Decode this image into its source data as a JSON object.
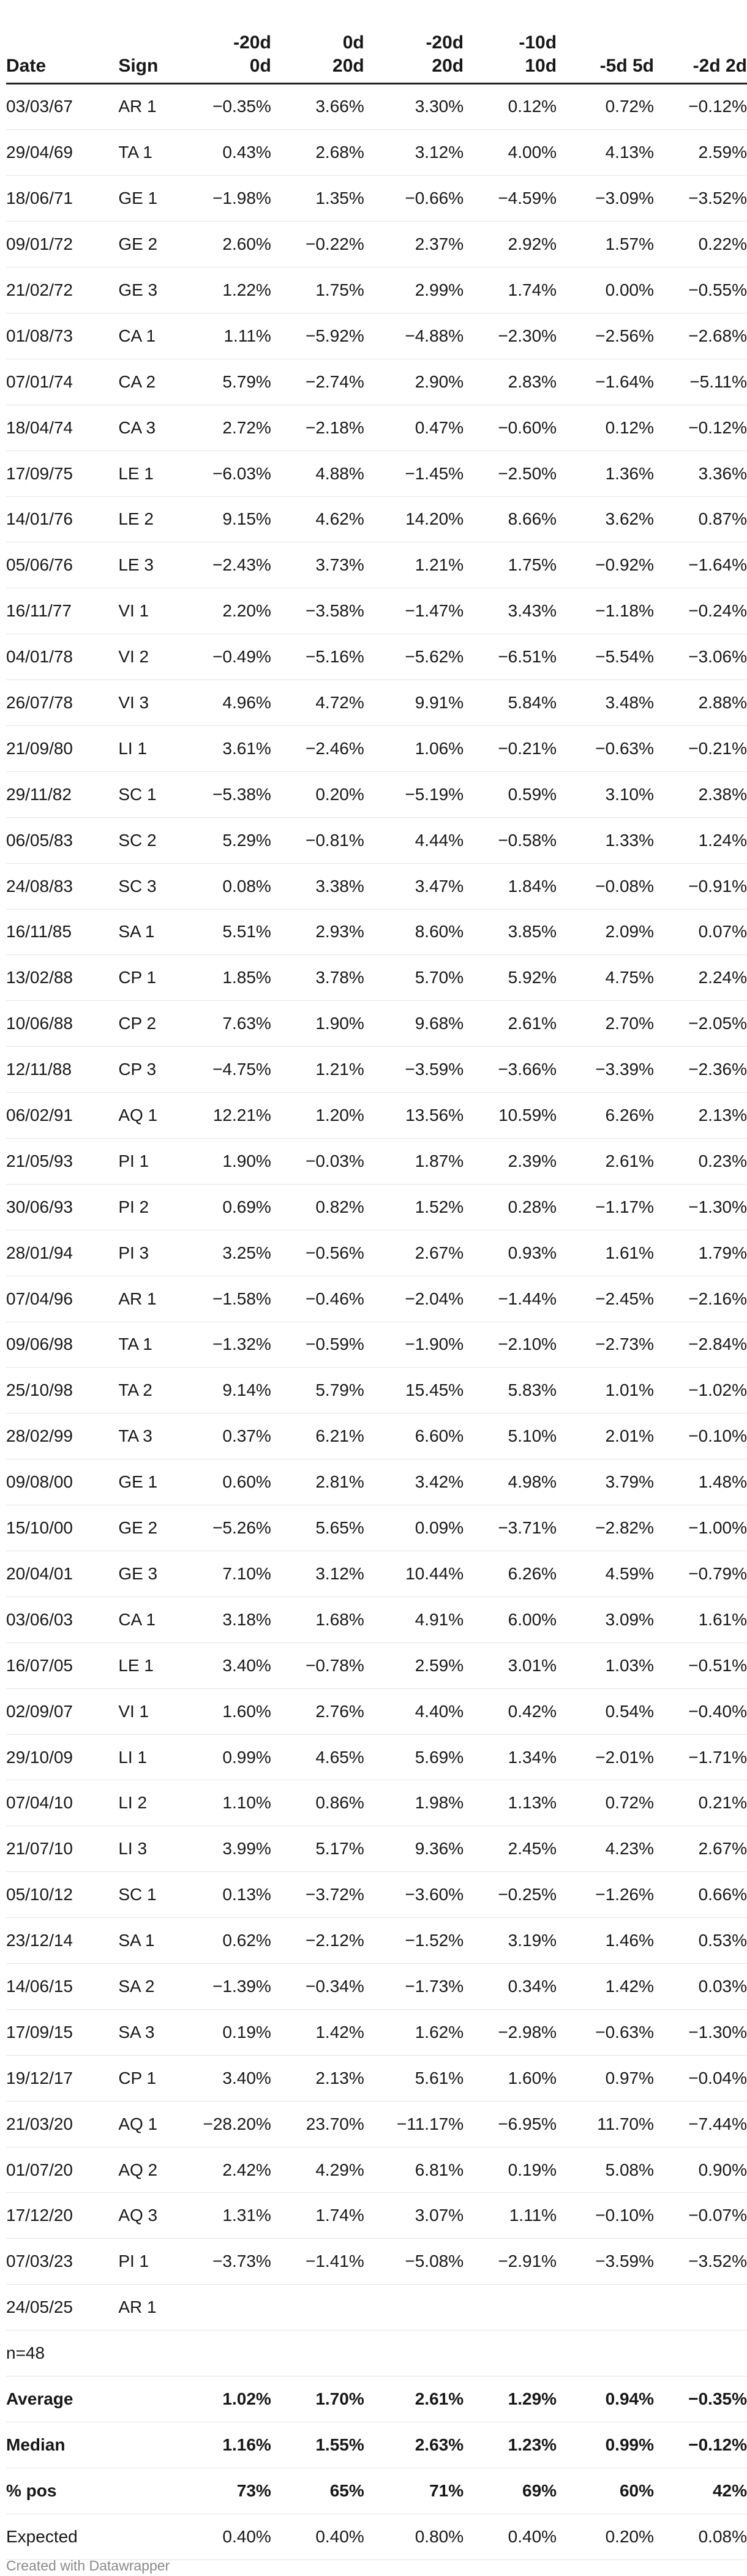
{
  "table": {
    "headers": [
      {
        "l1": "",
        "l2": "Date"
      },
      {
        "l1": "",
        "l2": "Sign"
      },
      {
        "l1": "-20d",
        "l2": "0d"
      },
      {
        "l1": "0d",
        "l2": "20d"
      },
      {
        "l1": "-20d",
        "l2": "20d"
      },
      {
        "l1": "-10d",
        "l2": "10d"
      },
      {
        "l1": "",
        "l2": "-5d 5d"
      },
      {
        "l1": "",
        "l2": "-2d 2d"
      }
    ],
    "rows": [
      [
        "03/03/67",
        "AR 1",
        "−0.35%",
        "3.66%",
        "3.30%",
        "0.12%",
        "0.72%",
        "−0.12%"
      ],
      [
        "29/04/69",
        "TA 1",
        "0.43%",
        "2.68%",
        "3.12%",
        "4.00%",
        "4.13%",
        "2.59%"
      ],
      [
        "18/06/71",
        "GE 1",
        "−1.98%",
        "1.35%",
        "−0.66%",
        "−4.59%",
        "−3.09%",
        "−3.52%"
      ],
      [
        "09/01/72",
        "GE 2",
        "2.60%",
        "−0.22%",
        "2.37%",
        "2.92%",
        "1.57%",
        "0.22%"
      ],
      [
        "21/02/72",
        "GE 3",
        "1.22%",
        "1.75%",
        "2.99%",
        "1.74%",
        "0.00%",
        "−0.55%"
      ],
      [
        "01/08/73",
        "CA 1",
        "1.11%",
        "−5.92%",
        "−4.88%",
        "−2.30%",
        "−2.56%",
        "−2.68%"
      ],
      [
        "07/01/74",
        "CA 2",
        "5.79%",
        "−2.74%",
        "2.90%",
        "2.83%",
        "−1.64%",
        "−5.11%"
      ],
      [
        "18/04/74",
        "CA 3",
        "2.72%",
        "−2.18%",
        "0.47%",
        "−0.60%",
        "0.12%",
        "−0.12%"
      ],
      [
        "17/09/75",
        "LE 1",
        "−6.03%",
        "4.88%",
        "−1.45%",
        "−2.50%",
        "1.36%",
        "3.36%"
      ],
      [
        "14/01/76",
        "LE 2",
        "9.15%",
        "4.62%",
        "14.20%",
        "8.66%",
        "3.62%",
        "0.87%"
      ],
      [
        "05/06/76",
        "LE 3",
        "−2.43%",
        "3.73%",
        "1.21%",
        "1.75%",
        "−0.92%",
        "−1.64%"
      ],
      [
        "16/11/77",
        "VI 1",
        "2.20%",
        "−3.58%",
        "−1.47%",
        "3.43%",
        "−1.18%",
        "−0.24%"
      ],
      [
        "04/01/78",
        "VI 2",
        "−0.49%",
        "−5.16%",
        "−5.62%",
        "−6.51%",
        "−5.54%",
        "−3.06%"
      ],
      [
        "26/07/78",
        "VI 3",
        "4.96%",
        "4.72%",
        "9.91%",
        "5.84%",
        "3.48%",
        "2.88%"
      ],
      [
        "21/09/80",
        "LI 1",
        "3.61%",
        "−2.46%",
        "1.06%",
        "−0.21%",
        "−0.63%",
        "−0.21%"
      ],
      [
        "29/11/82",
        "SC 1",
        "−5.38%",
        "0.20%",
        "−5.19%",
        "0.59%",
        "3.10%",
        "2.38%"
      ],
      [
        "06/05/83",
        "SC 2",
        "5.29%",
        "−0.81%",
        "4.44%",
        "−0.58%",
        "1.33%",
        "1.24%"
      ],
      [
        "24/08/83",
        "SC 3",
        "0.08%",
        "3.38%",
        "3.47%",
        "1.84%",
        "−0.08%",
        "−0.91%"
      ],
      [
        "16/11/85",
        "SA 1",
        "5.51%",
        "2.93%",
        "8.60%",
        "3.85%",
        "2.09%",
        "0.07%"
      ],
      [
        "13/02/88",
        "CP 1",
        "1.85%",
        "3.78%",
        "5.70%",
        "5.92%",
        "4.75%",
        "2.24%"
      ],
      [
        "10/06/88",
        "CP 2",
        "7.63%",
        "1.90%",
        "9.68%",
        "2.61%",
        "2.70%",
        "−2.05%"
      ],
      [
        "12/11/88",
        "CP 3",
        "−4.75%",
        "1.21%",
        "−3.59%",
        "−3.66%",
        "−3.39%",
        "−2.36%"
      ],
      [
        "06/02/91",
        "AQ 1",
        "12.21%",
        "1.20%",
        "13.56%",
        "10.59%",
        "6.26%",
        "2.13%"
      ],
      [
        "21/05/93",
        "PI 1",
        "1.90%",
        "−0.03%",
        "1.87%",
        "2.39%",
        "2.61%",
        "0.23%"
      ],
      [
        "30/06/93",
        "PI 2",
        "0.69%",
        "0.82%",
        "1.52%",
        "0.28%",
        "−1.17%",
        "−1.30%"
      ],
      [
        "28/01/94",
        "PI 3",
        "3.25%",
        "−0.56%",
        "2.67%",
        "0.93%",
        "1.61%",
        "1.79%"
      ],
      [
        "07/04/96",
        "AR 1",
        "−1.58%",
        "−0.46%",
        "−2.04%",
        "−1.44%",
        "−2.45%",
        "−2.16%"
      ],
      [
        "09/06/98",
        "TA 1",
        "−1.32%",
        "−0.59%",
        "−1.90%",
        "−2.10%",
        "−2.73%",
        "−2.84%"
      ],
      [
        "25/10/98",
        "TA 2",
        "9.14%",
        "5.79%",
        "15.45%",
        "5.83%",
        "1.01%",
        "−1.02%"
      ],
      [
        "28/02/99",
        "TA 3",
        "0.37%",
        "6.21%",
        "6.60%",
        "5.10%",
        "2.01%",
        "−0.10%"
      ],
      [
        "09/08/00",
        "GE 1",
        "0.60%",
        "2.81%",
        "3.42%",
        "4.98%",
        "3.79%",
        "1.48%"
      ],
      [
        "15/10/00",
        "GE 2",
        "−5.26%",
        "5.65%",
        "0.09%",
        "−3.71%",
        "−2.82%",
        "−1.00%"
      ],
      [
        "20/04/01",
        "GE 3",
        "7.10%",
        "3.12%",
        "10.44%",
        "6.26%",
        "4.59%",
        "−0.79%"
      ],
      [
        "03/06/03",
        "CA 1",
        "3.18%",
        "1.68%",
        "4.91%",
        "6.00%",
        "3.09%",
        "1.61%"
      ],
      [
        "16/07/05",
        "LE 1",
        "3.40%",
        "−0.78%",
        "2.59%",
        "3.01%",
        "1.03%",
        "−0.51%"
      ],
      [
        "02/09/07",
        "VI 1",
        "1.60%",
        "2.76%",
        "4.40%",
        "0.42%",
        "0.54%",
        "−0.40%"
      ],
      [
        "29/10/09",
        "LI 1",
        "0.99%",
        "4.65%",
        "5.69%",
        "1.34%",
        "−2.01%",
        "−1.71%"
      ],
      [
        "07/04/10",
        "LI 2",
        "1.10%",
        "0.86%",
        "1.98%",
        "1.13%",
        "0.72%",
        "0.21%"
      ],
      [
        "21/07/10",
        "LI 3",
        "3.99%",
        "5.17%",
        "9.36%",
        "2.45%",
        "4.23%",
        "2.67%"
      ],
      [
        "05/10/12",
        "SC 1",
        "0.13%",
        "−3.72%",
        "−3.60%",
        "−0.25%",
        "−1.26%",
        "0.66%"
      ],
      [
        "23/12/14",
        "SA 1",
        "0.62%",
        "−2.12%",
        "−1.52%",
        "3.19%",
        "1.46%",
        "0.53%"
      ],
      [
        "14/06/15",
        "SA 2",
        "−1.39%",
        "−0.34%",
        "−1.73%",
        "0.34%",
        "1.42%",
        "0.03%"
      ],
      [
        "17/09/15",
        "SA 3",
        "0.19%",
        "1.42%",
        "1.62%",
        "−2.98%",
        "−0.63%",
        "−1.30%"
      ],
      [
        "19/12/17",
        "CP 1",
        "3.40%",
        "2.13%",
        "5.61%",
        "1.60%",
        "0.97%",
        "−0.04%"
      ],
      [
        "21/03/20",
        "AQ 1",
        "−28.20%",
        "23.70%",
        "−11.17%",
        "−6.95%",
        "11.70%",
        "−7.44%"
      ],
      [
        "01/07/20",
        "AQ 2",
        "2.42%",
        "4.29%",
        "6.81%",
        "0.19%",
        "5.08%",
        "0.90%"
      ],
      [
        "17/12/20",
        "AQ 3",
        "1.31%",
        "1.74%",
        "3.07%",
        "1.11%",
        "−0.10%",
        "−0.07%"
      ],
      [
        "07/03/23",
        "PI 1",
        "−3.73%",
        "−1.41%",
        "−5.08%",
        "−2.91%",
        "−3.59%",
        "−3.52%"
      ],
      [
        "24/05/25",
        "AR 1",
        "",
        "",
        "",
        "",
        "",
        ""
      ],
      [
        "n=48",
        "",
        "",
        "",
        "",
        "",
        "",
        ""
      ]
    ],
    "summary": [
      {
        "label": "Average",
        "bold": true,
        "values": [
          "1.02%",
          "1.70%",
          "2.61%",
          "1.29%",
          "0.94%",
          "−0.35%"
        ]
      },
      {
        "label": "Median",
        "bold": true,
        "values": [
          "1.16%",
          "1.55%",
          "2.63%",
          "1.23%",
          "0.99%",
          "−0.12%"
        ]
      },
      {
        "label": "% pos",
        "bold": true,
        "values": [
          "73%",
          "65%",
          "71%",
          "69%",
          "60%",
          "42%"
        ]
      },
      {
        "label": "Expected",
        "bold": false,
        "values": [
          "0.40%",
          "0.40%",
          "0.80%",
          "0.40%",
          "0.20%",
          "0.08%"
        ]
      }
    ]
  },
  "footer": "Created with Datawrapper"
}
